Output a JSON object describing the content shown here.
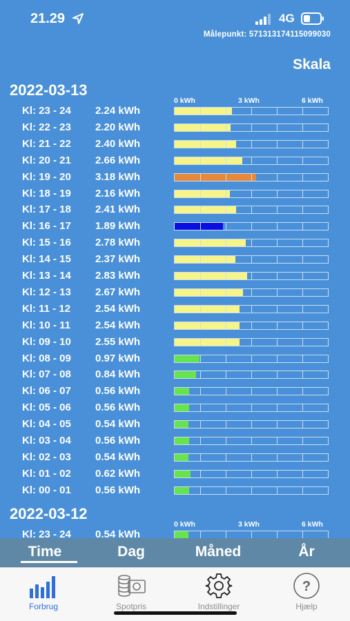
{
  "status_bar": {
    "time": "21.29",
    "network": "4G"
  },
  "header": {
    "malepunkt": "Målepunkt: 571313174115099030",
    "skala_label": "Skala"
  },
  "scale": {
    "labels": [
      "0 kWh",
      "3 kWh",
      "6 kWh"
    ],
    "max_kwh": 6
  },
  "colors": {
    "green": "#66e34f",
    "yellow": "#f7f588",
    "orange": "#e8883a",
    "blue": "#0a0ee0"
  },
  "days": [
    {
      "date": "2022-03-13",
      "rows": [
        {
          "hour": "Kl: 23 - 24",
          "kwh_label": "2.24 kWh",
          "kwh": 2.24,
          "color": "yellow"
        },
        {
          "hour": "Kl: 22 - 23",
          "kwh_label": "2.20 kWh",
          "kwh": 2.2,
          "color": "yellow"
        },
        {
          "hour": "Kl: 21 - 22",
          "kwh_label": "2.40 kWh",
          "kwh": 2.4,
          "color": "yellow"
        },
        {
          "hour": "Kl: 20 - 21",
          "kwh_label": "2.66 kWh",
          "kwh": 2.66,
          "color": "yellow"
        },
        {
          "hour": "Kl: 19 - 20",
          "kwh_label": "3.18 kWh",
          "kwh": 3.18,
          "color": "orange"
        },
        {
          "hour": "Kl: 18 - 19",
          "kwh_label": "2.16 kWh",
          "kwh": 2.16,
          "color": "yellow"
        },
        {
          "hour": "Kl: 17 - 18",
          "kwh_label": "2.41 kWh",
          "kwh": 2.41,
          "color": "yellow"
        },
        {
          "hour": "Kl: 16 - 17",
          "kwh_label": "1.89 kWh",
          "kwh": 1.89,
          "color": "blue"
        },
        {
          "hour": "Kl: 15 - 16",
          "kwh_label": "2.78 kWh",
          "kwh": 2.78,
          "color": "yellow"
        },
        {
          "hour": "Kl: 14 - 15",
          "kwh_label": "2.37 kWh",
          "kwh": 2.37,
          "color": "yellow"
        },
        {
          "hour": "Kl: 13 - 14",
          "kwh_label": "2.83 kWh",
          "kwh": 2.83,
          "color": "yellow"
        },
        {
          "hour": "Kl: 12 - 13",
          "kwh_label": "2.67 kWh",
          "kwh": 2.67,
          "color": "yellow"
        },
        {
          "hour": "Kl: 11 - 12",
          "kwh_label": "2.54 kWh",
          "kwh": 2.54,
          "color": "yellow"
        },
        {
          "hour": "Kl: 10 - 11",
          "kwh_label": "2.54 kWh",
          "kwh": 2.54,
          "color": "yellow"
        },
        {
          "hour": "Kl: 09 - 10",
          "kwh_label": "2.55 kWh",
          "kwh": 2.55,
          "color": "yellow"
        },
        {
          "hour": "Kl: 08 - 09",
          "kwh_label": "0.97 kWh",
          "kwh": 0.97,
          "color": "green"
        },
        {
          "hour": "Kl: 07 - 08",
          "kwh_label": "0.84 kWh",
          "kwh": 0.84,
          "color": "green"
        },
        {
          "hour": "Kl: 06 - 07",
          "kwh_label": "0.56 kWh",
          "kwh": 0.56,
          "color": "green"
        },
        {
          "hour": "Kl: 05 - 06",
          "kwh_label": "0.56 kWh",
          "kwh": 0.56,
          "color": "green"
        },
        {
          "hour": "Kl: 04 - 05",
          "kwh_label": "0.54 kWh",
          "kwh": 0.54,
          "color": "green"
        },
        {
          "hour": "Kl: 03 - 04",
          "kwh_label": "0.56 kWh",
          "kwh": 0.56,
          "color": "green"
        },
        {
          "hour": "Kl: 02 - 03",
          "kwh_label": "0.54 kWh",
          "kwh": 0.54,
          "color": "green"
        },
        {
          "hour": "Kl: 01 - 02",
          "kwh_label": "0.62 kWh",
          "kwh": 0.62,
          "color": "green"
        },
        {
          "hour": "Kl: 00 - 01",
          "kwh_label": "0.56 kWh",
          "kwh": 0.56,
          "color": "green"
        }
      ]
    },
    {
      "date": "2022-03-12",
      "rows": [
        {
          "hour": "Kl: 23 - 24",
          "kwh_label": "0.54 kWh",
          "kwh": 0.54,
          "color": "green"
        }
      ]
    }
  ],
  "period_tabs": [
    {
      "label": "Time",
      "active": true
    },
    {
      "label": "Dag",
      "active": false
    },
    {
      "label": "Måned",
      "active": false
    },
    {
      "label": "År",
      "active": false
    }
  ],
  "tabbar": [
    {
      "label": "Forbrug",
      "icon": "bar-chart-icon",
      "active": true
    },
    {
      "label": "Spotpris",
      "icon": "coins-icon",
      "active": false
    },
    {
      "label": "Indstillinger",
      "icon": "gear-icon",
      "active": false
    },
    {
      "label": "Hjælp",
      "icon": "help-icon",
      "active": false
    }
  ]
}
